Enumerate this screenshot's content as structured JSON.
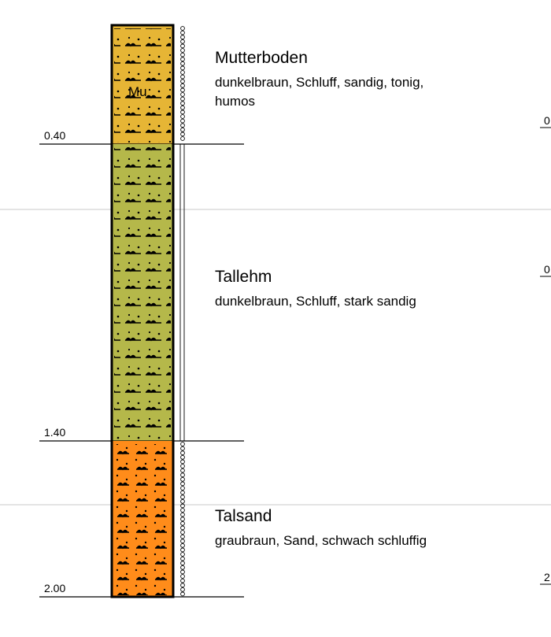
{
  "layers": [
    {
      "name": "Mutterboden",
      "description": [
        "dunkelbraun, Schluff, sandig, tonig,",
        "humos"
      ],
      "depth": "0.40",
      "code": "Mu"
    },
    {
      "name": "Tallehm",
      "description": [
        "dunkelbraun, Schluff, stark sandig"
      ],
      "depth": "1.40"
    },
    {
      "name": "Talsand",
      "description": [
        "graubraun, Sand, schwach schluffig"
      ],
      "depth": "2.00"
    }
  ],
  "edge_labels": [
    "0",
    "0",
    "2"
  ]
}
